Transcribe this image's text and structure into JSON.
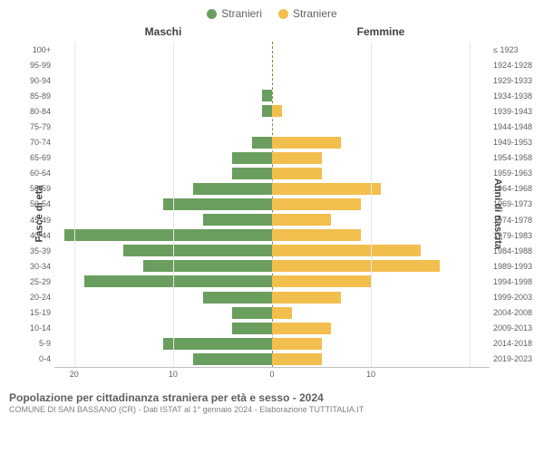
{
  "legend": {
    "male": {
      "label": "Stranieri",
      "color": "#6a9e5f"
    },
    "female": {
      "label": "Straniere",
      "color": "#f2be4d"
    }
  },
  "headers": {
    "left": "Maschi",
    "right": "Femmine"
  },
  "axes": {
    "leftTitle": "Fasce di età",
    "rightTitle": "Anni di nascita",
    "xMax": 22,
    "xTicks": [
      20,
      10,
      0,
      10
    ],
    "gridColor": "#e6e6e6",
    "centerDash": "#888844"
  },
  "rows": [
    {
      "age": "100+",
      "birth": "≤ 1923",
      "m": 0,
      "f": 0
    },
    {
      "age": "95-99",
      "birth": "1924-1928",
      "m": 0,
      "f": 0
    },
    {
      "age": "90-94",
      "birth": "1929-1933",
      "m": 0,
      "f": 0
    },
    {
      "age": "85-89",
      "birth": "1934-1938",
      "m": 1,
      "f": 0
    },
    {
      "age": "80-84",
      "birth": "1939-1943",
      "m": 1,
      "f": 1
    },
    {
      "age": "75-79",
      "birth": "1944-1948",
      "m": 0,
      "f": 0
    },
    {
      "age": "70-74",
      "birth": "1949-1953",
      "m": 2,
      "f": 7
    },
    {
      "age": "65-69",
      "birth": "1954-1958",
      "m": 4,
      "f": 5
    },
    {
      "age": "60-64",
      "birth": "1959-1963",
      "m": 4,
      "f": 5
    },
    {
      "age": "55-59",
      "birth": "1964-1968",
      "m": 8,
      "f": 11
    },
    {
      "age": "50-54",
      "birth": "1969-1973",
      "m": 11,
      "f": 9
    },
    {
      "age": "45-49",
      "birth": "1974-1978",
      "m": 7,
      "f": 6
    },
    {
      "age": "40-44",
      "birth": "1979-1983",
      "m": 21,
      "f": 9
    },
    {
      "age": "35-39",
      "birth": "1984-1988",
      "m": 15,
      "f": 15
    },
    {
      "age": "30-34",
      "birth": "1989-1993",
      "m": 13,
      "f": 17
    },
    {
      "age": "25-29",
      "birth": "1994-1998",
      "m": 19,
      "f": 10
    },
    {
      "age": "20-24",
      "birth": "1999-2003",
      "m": 7,
      "f": 7
    },
    {
      "age": "15-19",
      "birth": "2004-2008",
      "m": 4,
      "f": 2
    },
    {
      "age": "10-14",
      "birth": "2009-2013",
      "m": 4,
      "f": 6
    },
    {
      "age": "5-9",
      "birth": "2014-2018",
      "m": 11,
      "f": 5
    },
    {
      "age": "0-4",
      "birth": "2019-2023",
      "m": 8,
      "f": 5
    }
  ],
  "footer": {
    "title": "Popolazione per cittadinanza straniera per età e sesso - 2024",
    "sub": "COMUNE DI SAN BASSANO (CR) - Dati ISTAT al 1° gennaio 2024 - Elaborazione TUTTITALIA.IT"
  },
  "style": {
    "background": "#ffffff",
    "textMuted": "#606060",
    "labelFontSize": 9,
    "headerFontSize": 12
  }
}
